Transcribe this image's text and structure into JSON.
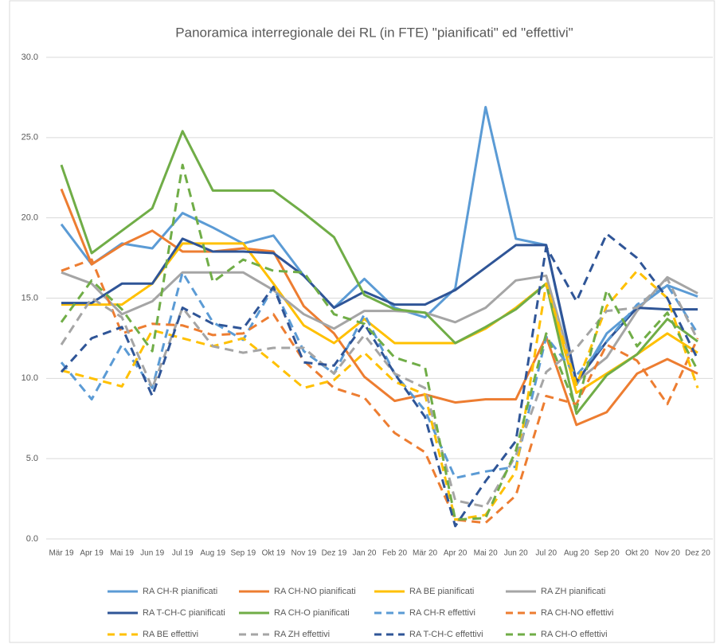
{
  "chart_data": {
    "type": "line",
    "title": "Panoramica interregionale dei RL (in FTE) \"pianificati\" ed \"effettivi\"",
    "categories": [
      "Mär 19",
      "Apr 19",
      "Mai 19",
      "Jun 19",
      "Jul 19",
      "Aug 19",
      "Sep 19",
      "Okt 19",
      "Nov 19",
      "Dez 19",
      "Jan 20",
      "Feb 20",
      "Mär 20",
      "Apr 20",
      "Mai 20",
      "Jun 20",
      "Jul 20",
      "Aug 20",
      "Sep 20",
      "Okt 20",
      "Nov 20",
      "Dez 20"
    ],
    "ylim": [
      0,
      30
    ],
    "yticks": [
      {
        "value": 0,
        "label": "0.0"
      },
      {
        "value": 5,
        "label": "5.0"
      },
      {
        "value": 10,
        "label": "10.0"
      },
      {
        "value": 15,
        "label": "15.0"
      },
      {
        "value": 20,
        "label": "20.0"
      },
      {
        "value": 25,
        "label": "25.0"
      },
      {
        "value": 30,
        "label": "30.0"
      }
    ],
    "grid": true,
    "legend": "bottom",
    "series": [
      {
        "name": "RA CH-R pianificati",
        "color": "#5b9bd5",
        "dashed": false,
        "values": [
          19.6,
          17.1,
          18.4,
          18.1,
          20.3,
          19.4,
          18.4,
          18.9,
          16.4,
          14.4,
          16.2,
          14.4,
          13.8,
          15.6,
          26.9,
          18.7,
          18.3,
          9.6,
          12.8,
          14.4,
          15.8,
          15.1
        ]
      },
      {
        "name": "RA CH-NO pianificati",
        "color": "#ed7d31",
        "dashed": false,
        "values": [
          21.8,
          17.1,
          18.3,
          19.2,
          17.9,
          17.9,
          18.1,
          17.9,
          14.5,
          12.8,
          10.1,
          8.6,
          9.0,
          8.5,
          8.7,
          8.7,
          12.6,
          7.1,
          7.9,
          10.3,
          11.2,
          10.3
        ]
      },
      {
        "name": "RA BE pianificati",
        "color": "#ffc000",
        "dashed": false,
        "values": [
          14.6,
          14.6,
          14.6,
          15.9,
          18.4,
          18.4,
          18.4,
          15.9,
          13.3,
          12.2,
          13.7,
          12.2,
          12.2,
          12.2,
          13.1,
          14.4,
          15.9,
          9.1,
          10.3,
          11.5,
          12.8,
          11.6
        ]
      },
      {
        "name": "RA ZH pianificati",
        "color": "#a5a5a5",
        "dashed": false,
        "values": [
          16.6,
          15.9,
          14.0,
          14.8,
          16.6,
          16.6,
          16.6,
          15.5,
          14.0,
          13.1,
          14.2,
          14.2,
          14.1,
          13.5,
          14.4,
          16.1,
          16.4,
          9.8,
          11.3,
          14.2,
          16.3,
          15.3
        ]
      },
      {
        "name": "RA T-CH-C pianificati",
        "color": "#2f5597",
        "dashed": false,
        "values": [
          14.7,
          14.7,
          15.9,
          15.9,
          18.7,
          17.9,
          17.9,
          17.8,
          16.4,
          14.4,
          15.4,
          14.6,
          14.6,
          15.5,
          16.9,
          18.3,
          18.3,
          9.8,
          12.3,
          14.4,
          14.3,
          14.3
        ]
      },
      {
        "name": "RA CH-O pianificati",
        "color": "#70ad47",
        "dashed": false,
        "values": [
          23.3,
          17.8,
          19.2,
          20.6,
          25.4,
          21.7,
          21.7,
          21.7,
          20.3,
          18.8,
          15.2,
          14.3,
          14.1,
          12.2,
          13.2,
          14.3,
          15.9,
          7.8,
          10.2,
          11.5,
          13.7,
          12.3
        ]
      },
      {
        "name": "RA CH-R effettivi",
        "color": "#5b9bd5",
        "dashed": true,
        "values": [
          11.0,
          8.7,
          12.1,
          9.4,
          16.6,
          13.5,
          12.4,
          15.7,
          11.7,
          10.3,
          14.0,
          10.3,
          8.0,
          3.8,
          4.2,
          4.5,
          12.6,
          10.2,
          12.3,
          14.6,
          15.8,
          12.8
        ]
      },
      {
        "name": "RA CH-NO effettivi",
        "color": "#ed7d31",
        "dashed": true,
        "values": [
          16.7,
          17.4,
          12.8,
          13.4,
          13.3,
          12.7,
          12.8,
          14.0,
          11.1,
          9.4,
          8.8,
          6.6,
          5.4,
          1.2,
          1.0,
          2.7,
          8.9,
          8.4,
          12.1,
          11.1,
          8.4,
          12.5
        ]
      },
      {
        "name": "RA BE effettivi",
        "color": "#ffc000",
        "dashed": true,
        "values": [
          10.5,
          10.0,
          9.5,
          13.0,
          12.5,
          12.0,
          12.5,
          11.0,
          9.4,
          9.9,
          11.6,
          9.8,
          9.0,
          1.2,
          1.5,
          4.2,
          15.9,
          9.6,
          14.5,
          16.7,
          15.0,
          9.4
        ]
      },
      {
        "name": "RA ZH effettivi",
        "color": "#a5a5a5",
        "dashed": true,
        "values": [
          12.1,
          15.0,
          13.8,
          9.4,
          14.4,
          12.0,
          11.6,
          11.9,
          11.9,
          10.3,
          12.7,
          10.3,
          9.4,
          2.4,
          2.0,
          5.2,
          10.4,
          11.9,
          14.2,
          14.4,
          16.2,
          12.4
        ]
      },
      {
        "name": "RA T-CH-C effettivi",
        "color": "#2f5597",
        "dashed": true,
        "values": [
          10.4,
          12.5,
          13.2,
          8.9,
          14.4,
          13.4,
          13.1,
          15.7,
          11.0,
          10.8,
          13.4,
          10.3,
          7.6,
          0.8,
          3.6,
          6.1,
          18.2,
          14.8,
          19.0,
          17.5,
          15.0,
          11.2
        ]
      },
      {
        "name": "RA CH-O effettivi",
        "color": "#70ad47",
        "dashed": true,
        "values": [
          13.5,
          16.1,
          14.3,
          11.7,
          23.3,
          16.0,
          17.4,
          16.7,
          16.6,
          14.0,
          13.4,
          11.3,
          10.7,
          1.2,
          1.3,
          5.5,
          12.8,
          8.1,
          15.5,
          12.0,
          14.1,
          10.5
        ]
      }
    ]
  }
}
